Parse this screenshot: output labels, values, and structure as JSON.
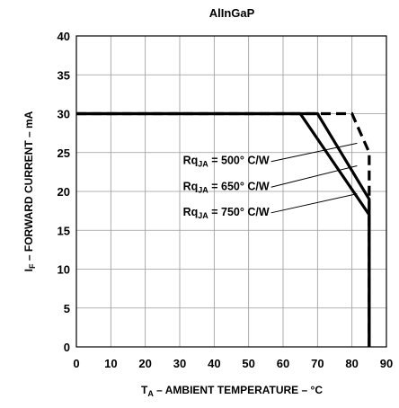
{
  "chart_data": {
    "type": "line",
    "title": "AlInGaP",
    "xlabel": {
      "main": "T",
      "sub": "A",
      "rest": " – AMBIENT TEMPERATURE – °C"
    },
    "ylabel": {
      "main": "I",
      "sub": "F",
      "rest": " – FORWARD CURRENT – mA"
    },
    "xlim": [
      0,
      90
    ],
    "ylim": [
      0,
      40
    ],
    "xticks": [
      "0",
      "10",
      "20",
      "30",
      "40",
      "50",
      "60",
      "70",
      "80",
      "90"
    ],
    "yticks": [
      "0",
      "5",
      "10",
      "15",
      "20",
      "25",
      "30",
      "35",
      "40"
    ],
    "grid": true,
    "series": [
      {
        "name": "RqJA = 500° C/W",
        "style": "dashed",
        "x": [
          0,
          80,
          85,
          85
        ],
        "y": [
          30,
          30,
          25,
          0
        ]
      },
      {
        "name": "RqJA = 650° C/W",
        "style": "solid",
        "x": [
          0,
          70,
          85,
          85
        ],
        "y": [
          30,
          30,
          19,
          0
        ]
      },
      {
        "name": "RqJA = 750° C/W",
        "style": "solid",
        "x": [
          0,
          65,
          85,
          85
        ],
        "y": [
          30,
          30,
          17,
          0
        ]
      }
    ],
    "annotations": [
      {
        "text_main": "Rq",
        "text_sub": "JA",
        "text_rest": " = 500° C/W",
        "label_x": 56,
        "label_y": 23.5,
        "arrow_x": 81.5,
        "arrow_y": 26.2
      },
      {
        "text_main": "Rq",
        "text_sub": "JA",
        "text_rest": " = 650° C/W",
        "label_x": 56,
        "label_y": 20.2,
        "arrow_x": 81.5,
        "arrow_y": 23.3
      },
      {
        "text_main": "Rq",
        "text_sub": "JA",
        "text_rest": " = 750° C/W",
        "label_x": 56,
        "label_y": 16.9,
        "arrow_x": 81.5,
        "arrow_y": 19.7
      }
    ]
  }
}
